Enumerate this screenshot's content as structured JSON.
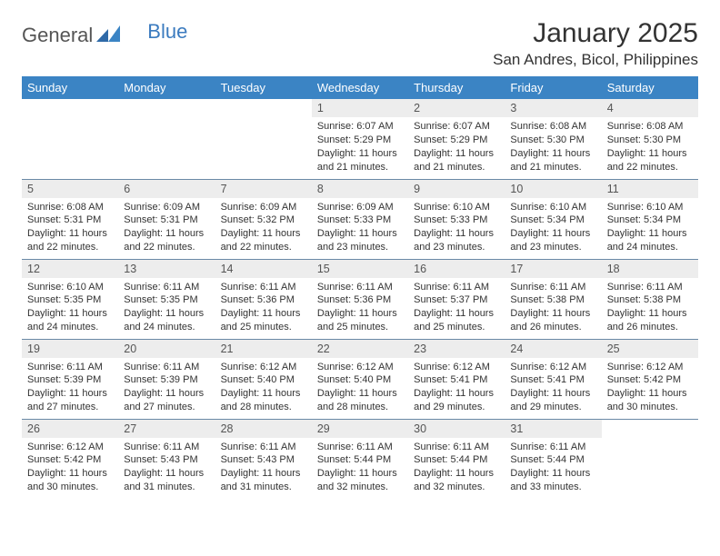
{
  "logo": {
    "part1": "General",
    "part2": "Blue"
  },
  "title": "January 2025",
  "location": "San Andres, Bicol, Philippines",
  "colors": {
    "header_bg": "#3b84c4",
    "header_text": "#ffffff",
    "daynum_bg": "#ededed",
    "row_border": "#6a89a6",
    "logo_gray": "#666666",
    "logo_blue": "#3b7bbf"
  },
  "weekdays": [
    "Sunday",
    "Monday",
    "Tuesday",
    "Wednesday",
    "Thursday",
    "Friday",
    "Saturday"
  ],
  "weeks": [
    [
      null,
      null,
      null,
      {
        "n": "1",
        "sunrise": "6:07 AM",
        "sunset": "5:29 PM",
        "dl": "11 hours and 21 minutes."
      },
      {
        "n": "2",
        "sunrise": "6:07 AM",
        "sunset": "5:29 PM",
        "dl": "11 hours and 21 minutes."
      },
      {
        "n": "3",
        "sunrise": "6:08 AM",
        "sunset": "5:30 PM",
        "dl": "11 hours and 21 minutes."
      },
      {
        "n": "4",
        "sunrise": "6:08 AM",
        "sunset": "5:30 PM",
        "dl": "11 hours and 22 minutes."
      }
    ],
    [
      {
        "n": "5",
        "sunrise": "6:08 AM",
        "sunset": "5:31 PM",
        "dl": "11 hours and 22 minutes."
      },
      {
        "n": "6",
        "sunrise": "6:09 AM",
        "sunset": "5:31 PM",
        "dl": "11 hours and 22 minutes."
      },
      {
        "n": "7",
        "sunrise": "6:09 AM",
        "sunset": "5:32 PM",
        "dl": "11 hours and 22 minutes."
      },
      {
        "n": "8",
        "sunrise": "6:09 AM",
        "sunset": "5:33 PM",
        "dl": "11 hours and 23 minutes."
      },
      {
        "n": "9",
        "sunrise": "6:10 AM",
        "sunset": "5:33 PM",
        "dl": "11 hours and 23 minutes."
      },
      {
        "n": "10",
        "sunrise": "6:10 AM",
        "sunset": "5:34 PM",
        "dl": "11 hours and 23 minutes."
      },
      {
        "n": "11",
        "sunrise": "6:10 AM",
        "sunset": "5:34 PM",
        "dl": "11 hours and 24 minutes."
      }
    ],
    [
      {
        "n": "12",
        "sunrise": "6:10 AM",
        "sunset": "5:35 PM",
        "dl": "11 hours and 24 minutes."
      },
      {
        "n": "13",
        "sunrise": "6:11 AM",
        "sunset": "5:35 PM",
        "dl": "11 hours and 24 minutes."
      },
      {
        "n": "14",
        "sunrise": "6:11 AM",
        "sunset": "5:36 PM",
        "dl": "11 hours and 25 minutes."
      },
      {
        "n": "15",
        "sunrise": "6:11 AM",
        "sunset": "5:36 PM",
        "dl": "11 hours and 25 minutes."
      },
      {
        "n": "16",
        "sunrise": "6:11 AM",
        "sunset": "5:37 PM",
        "dl": "11 hours and 25 minutes."
      },
      {
        "n": "17",
        "sunrise": "6:11 AM",
        "sunset": "5:38 PM",
        "dl": "11 hours and 26 minutes."
      },
      {
        "n": "18",
        "sunrise": "6:11 AM",
        "sunset": "5:38 PM",
        "dl": "11 hours and 26 minutes."
      }
    ],
    [
      {
        "n": "19",
        "sunrise": "6:11 AM",
        "sunset": "5:39 PM",
        "dl": "11 hours and 27 minutes."
      },
      {
        "n": "20",
        "sunrise": "6:11 AM",
        "sunset": "5:39 PM",
        "dl": "11 hours and 27 minutes."
      },
      {
        "n": "21",
        "sunrise": "6:12 AM",
        "sunset": "5:40 PM",
        "dl": "11 hours and 28 minutes."
      },
      {
        "n": "22",
        "sunrise": "6:12 AM",
        "sunset": "5:40 PM",
        "dl": "11 hours and 28 minutes."
      },
      {
        "n": "23",
        "sunrise": "6:12 AM",
        "sunset": "5:41 PM",
        "dl": "11 hours and 29 minutes."
      },
      {
        "n": "24",
        "sunrise": "6:12 AM",
        "sunset": "5:41 PM",
        "dl": "11 hours and 29 minutes."
      },
      {
        "n": "25",
        "sunrise": "6:12 AM",
        "sunset": "5:42 PM",
        "dl": "11 hours and 30 minutes."
      }
    ],
    [
      {
        "n": "26",
        "sunrise": "6:12 AM",
        "sunset": "5:42 PM",
        "dl": "11 hours and 30 minutes."
      },
      {
        "n": "27",
        "sunrise": "6:11 AM",
        "sunset": "5:43 PM",
        "dl": "11 hours and 31 minutes."
      },
      {
        "n": "28",
        "sunrise": "6:11 AM",
        "sunset": "5:43 PM",
        "dl": "11 hours and 31 minutes."
      },
      {
        "n": "29",
        "sunrise": "6:11 AM",
        "sunset": "5:44 PM",
        "dl": "11 hours and 32 minutes."
      },
      {
        "n": "30",
        "sunrise": "6:11 AM",
        "sunset": "5:44 PM",
        "dl": "11 hours and 32 minutes."
      },
      {
        "n": "31",
        "sunrise": "6:11 AM",
        "sunset": "5:44 PM",
        "dl": "11 hours and 33 minutes."
      },
      null
    ]
  ],
  "labels": {
    "sunrise": "Sunrise:",
    "sunset": "Sunset:",
    "daylight": "Daylight:"
  }
}
